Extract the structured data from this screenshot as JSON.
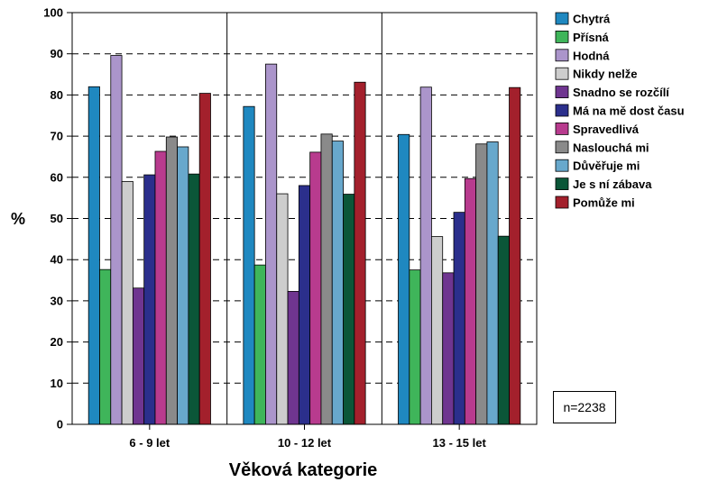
{
  "chart_data": {
    "type": "bar",
    "xlabel": "Věková kategorie",
    "ylabel": "%",
    "ylim": [
      0,
      100
    ],
    "yticks": [
      "0",
      "10",
      "20",
      "30",
      "40",
      "50",
      "60",
      "70",
      "80",
      "90",
      "100"
    ],
    "grid": "horizontal dashed",
    "legend_position": "right",
    "categories": [
      "6 - 9 let",
      "10 - 12 let",
      "13 - 15 let"
    ],
    "series": [
      {
        "name": "Chytrá",
        "color": "#1f88c0",
        "values": [
          82.0,
          77.2,
          70.4
        ]
      },
      {
        "name": "Přísná",
        "color": "#3fb55a",
        "values": [
          37.6,
          38.7,
          37.5
        ]
      },
      {
        "name": "Hodná",
        "color": "#ab95cb",
        "values": [
          89.6,
          87.5,
          81.9
        ]
      },
      {
        "name": "Nikdy nelže",
        "color": "#cdcdcd",
        "values": [
          59.0,
          56.0,
          45.6
        ]
      },
      {
        "name": "Snadno se rozčílí",
        "color": "#6f3590",
        "values": [
          33.1,
          32.3,
          36.8
        ]
      },
      {
        "name": "Má na mě dost času",
        "color": "#2b2f8c",
        "values": [
          60.6,
          58.0,
          51.5
        ]
      },
      {
        "name": "Spravedlivá",
        "color": "#b83b8e",
        "values": [
          66.3,
          66.1,
          59.7
        ]
      },
      {
        "name": "Naslouchá mi",
        "color": "#8a8a8a",
        "values": [
          69.8,
          70.5,
          68.1
        ]
      },
      {
        "name": "Důvěřuje mi",
        "color": "#68a8cc",
        "values": [
          67.4,
          68.8,
          68.6
        ]
      },
      {
        "name": "Je s ní zábava",
        "color": "#0b5638",
        "values": [
          60.8,
          55.9,
          45.7
        ]
      },
      {
        "name": "Pomůže mi",
        "color": "#a3202c",
        "values": [
          80.4,
          83.1,
          81.8
        ]
      }
    ],
    "note": "n=2238"
  }
}
